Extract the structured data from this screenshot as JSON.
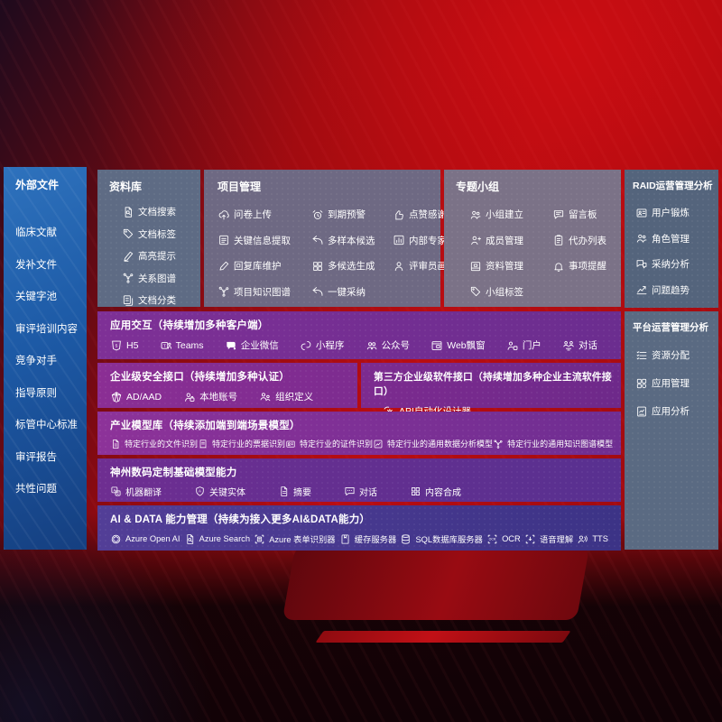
{
  "palette": {
    "background_red": "#b90d12",
    "background_dark": "#160409",
    "sidebar_blue": "#1d5aa6",
    "panel_slate": "#5e6b84",
    "purple_magenta": "#8d3299",
    "purple_violet": "#4c3a92",
    "text": "#ffffff"
  },
  "left_sidebar": {
    "title": "外部文件",
    "items": [
      {
        "label": "临床文献"
      },
      {
        "label": "发补文件"
      },
      {
        "label": "关键字池"
      },
      {
        "label": "审评培训内容"
      },
      {
        "label": "竞争对手"
      },
      {
        "label": "指导原则"
      },
      {
        "label": "标管中心标准"
      },
      {
        "label": "审评报告"
      },
      {
        "label": "共性问题"
      }
    ]
  },
  "library": {
    "title": "资料库",
    "items": [
      {
        "icon": "doc-search-icon",
        "label": "文档搜索"
      },
      {
        "icon": "tag-icon",
        "label": "文档标签"
      },
      {
        "icon": "highlighter-icon",
        "label": "高亮提示"
      },
      {
        "icon": "graph-icon",
        "label": "关系图谱"
      },
      {
        "icon": "copy-doc-icon",
        "label": "文档分类"
      }
    ]
  },
  "project": {
    "title": "项目管理",
    "items": [
      {
        "icon": "cloud-upload-icon",
        "label": "问卷上传"
      },
      {
        "icon": "alarm-icon",
        "label": "到期预警"
      },
      {
        "icon": "thumbs-up-icon",
        "label": "点赞感谢"
      },
      {
        "icon": "doc-extract-icon",
        "label": "关键信息提取"
      },
      {
        "icon": "reply-arrow-icon",
        "label": "多样本候选"
      },
      {
        "icon": "ranking-icon",
        "label": "内部专家排名"
      },
      {
        "icon": "pen-icon",
        "label": "回复库维护"
      },
      {
        "icon": "grid-icon",
        "label": "多候选生成"
      },
      {
        "icon": "person-icon",
        "label": "评审员画像"
      },
      {
        "icon": "graph-icon",
        "label": "项目知识图谱"
      },
      {
        "icon": "reply-arrow-icon",
        "label": "一键采纳"
      }
    ]
  },
  "topics": {
    "title": "专题小组",
    "items": [
      {
        "icon": "people-icon",
        "label": "小组建立"
      },
      {
        "icon": "bbs-icon",
        "label": "留言板"
      },
      {
        "icon": "person-plus-icon",
        "label": "成员管理"
      },
      {
        "icon": "clipboard-icon",
        "label": "代办列表"
      },
      {
        "icon": "archive-icon",
        "label": "资料管理"
      },
      {
        "icon": "bell-icon",
        "label": "事项提醒"
      },
      {
        "icon": "tag-icon",
        "label": "小组标签"
      }
    ]
  },
  "raid": {
    "title": "RAID运营管理分析",
    "items": [
      {
        "icon": "id-badge-icon",
        "label": "用户锻炼"
      },
      {
        "icon": "people-icon",
        "label": "角色管理"
      },
      {
        "icon": "chat-qa-icon",
        "label": "采纳分析"
      },
      {
        "icon": "trend-icon",
        "label": "问题趋势"
      }
    ]
  },
  "platform": {
    "title": "平台运营管理分析",
    "items": [
      {
        "icon": "list-check-icon",
        "label": "资源分配"
      },
      {
        "icon": "apps-icon",
        "label": "应用管理"
      },
      {
        "icon": "report-icon",
        "label": "应用分析"
      }
    ]
  },
  "interaction": {
    "title": "应用交互（持续增加多种客户端）",
    "items": [
      {
        "icon": "html5-icon",
        "label": "H5"
      },
      {
        "icon": "teams-icon",
        "label": "Teams"
      },
      {
        "icon": "wechat-work-icon",
        "label": "企业微信"
      },
      {
        "icon": "miniprogram-icon",
        "label": "小程序"
      },
      {
        "icon": "official-account-icon",
        "label": "公众号"
      },
      {
        "icon": "web-window-icon",
        "label": "Web飘窗"
      },
      {
        "icon": "portal-icon",
        "label": "门户"
      },
      {
        "icon": "dialog-icon",
        "label": "对话"
      }
    ]
  },
  "security": {
    "title": "企业级安全接口（持续增加多种认证）",
    "items": [
      {
        "icon": "ad-shield-icon",
        "label": "AD/AAD"
      },
      {
        "icon": "person-badge-icon",
        "label": "本地账号"
      },
      {
        "icon": "org-icon",
        "label": "组织定义"
      }
    ]
  },
  "third_party": {
    "title": "第三方企业级软件接口（持续增加多种企业主流软件接口）",
    "items": [
      {
        "icon": "api-gear-icon",
        "label": "API自动化设计器"
      }
    ]
  },
  "industry": {
    "title": "产业模型库（持续添加端到端场景模型）",
    "items": [
      {
        "icon": "doc-icon",
        "label": "特定行业的文件识别"
      },
      {
        "icon": "receipt-icon",
        "label": "特定行业的票据识别"
      },
      {
        "icon": "id-card-icon",
        "label": "特定行业的证件识别"
      },
      {
        "icon": "data-frame-icon",
        "label": "特定行业的通用数据分析模型"
      },
      {
        "icon": "graph-icon",
        "label": "特定行业的通用知识图谱模型"
      }
    ]
  },
  "custom": {
    "title": "神州数码定制基础模型能力",
    "items": [
      {
        "icon": "translate-icon",
        "label": "机器翻译"
      },
      {
        "icon": "entity-shield-icon",
        "label": "关键实体"
      },
      {
        "icon": "summary-doc-icon",
        "label": "摘要"
      },
      {
        "icon": "chat-dots-icon",
        "label": "对话"
      },
      {
        "icon": "grid-icon",
        "label": "内容合成"
      }
    ]
  },
  "aidata": {
    "title": "AI & DATA 能力管理（持续为接入更多AI&DATA能力）",
    "items": [
      {
        "icon": "openai-icon",
        "label": "Azure Open AI"
      },
      {
        "icon": "doc-search-icon",
        "label": "Azure Search"
      },
      {
        "icon": "form-scan-icon",
        "label": "Azure 表单识别器"
      },
      {
        "icon": "cache-icon",
        "label": "缓存服务器"
      },
      {
        "icon": "database-icon",
        "label": "SQL数据库服务器"
      },
      {
        "icon": "ocr-icon",
        "label": "OCR"
      },
      {
        "icon": "speech-icon",
        "label": "语音理解"
      },
      {
        "icon": "tts-icon",
        "label": "TTS"
      }
    ]
  }
}
